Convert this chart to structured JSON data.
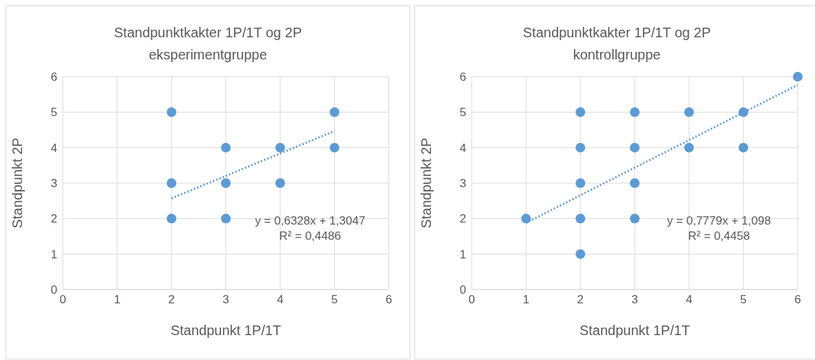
{
  "chart_data": [
    {
      "type": "scatter",
      "title": "Standpunktkakter 1P/1T og 2P eksperimentgruppe",
      "xlabel": "Standpunkt 1P/1T",
      "ylabel": "Standpunkt 2P",
      "xlim": [
        0,
        6
      ],
      "ylim": [
        0,
        6
      ],
      "xticks": [
        0,
        1,
        2,
        3,
        4,
        5,
        6
      ],
      "yticks": [
        0,
        1,
        2,
        3,
        4,
        5,
        6
      ],
      "grid": true,
      "legend": false,
      "marker": "circle",
      "annotations": [
        "y = 0,6328x + 1,3047",
        "R² = 0,4486"
      ],
      "series": [
        {
          "type": "scatter",
          "color": "#5b9bd5",
          "x": [
            2,
            2,
            2,
            3,
            3,
            3,
            4,
            4,
            5,
            5
          ],
          "values": [
            5,
            3,
            2,
            4,
            3,
            2,
            4,
            3,
            5,
            4
          ]
        },
        {
          "type": "line",
          "color": "#5b9bd5",
          "line_style": "dotted",
          "marker": "none",
          "x": [
            2,
            5
          ],
          "values": [
            2.57,
            4.47
          ]
        }
      ]
    },
    {
      "type": "scatter",
      "title": "Standpunktkakter 1P/1T og 2P kontrollgruppe",
      "xlabel": "Standpunkt 1P/1T",
      "ylabel": "Standpunkt 2P",
      "xlim": [
        0,
        6
      ],
      "ylim": [
        0,
        6
      ],
      "xticks": [
        0,
        1,
        2,
        3,
        4,
        5,
        6
      ],
      "yticks": [
        0,
        1,
        2,
        3,
        4,
        5,
        6
      ],
      "grid": true,
      "legend": false,
      "marker": "circle",
      "annotations": [
        "y = 0,7779x + 1,098",
        "R² = 0,4458"
      ],
      "series": [
        {
          "type": "scatter",
          "color": "#5b9bd5",
          "x": [
            1,
            2,
            2,
            2,
            2,
            2,
            3,
            3,
            3,
            3,
            4,
            4,
            5,
            5,
            6
          ],
          "values": [
            2,
            5,
            4,
            3,
            2,
            1,
            5,
            4,
            3,
            2,
            5,
            4,
            5,
            4,
            6
          ]
        },
        {
          "type": "line",
          "color": "#5b9bd5",
          "line_style": "dotted",
          "marker": "none",
          "x": [
            1,
            6
          ],
          "values": [
            1.88,
            5.77
          ]
        }
      ]
    }
  ]
}
